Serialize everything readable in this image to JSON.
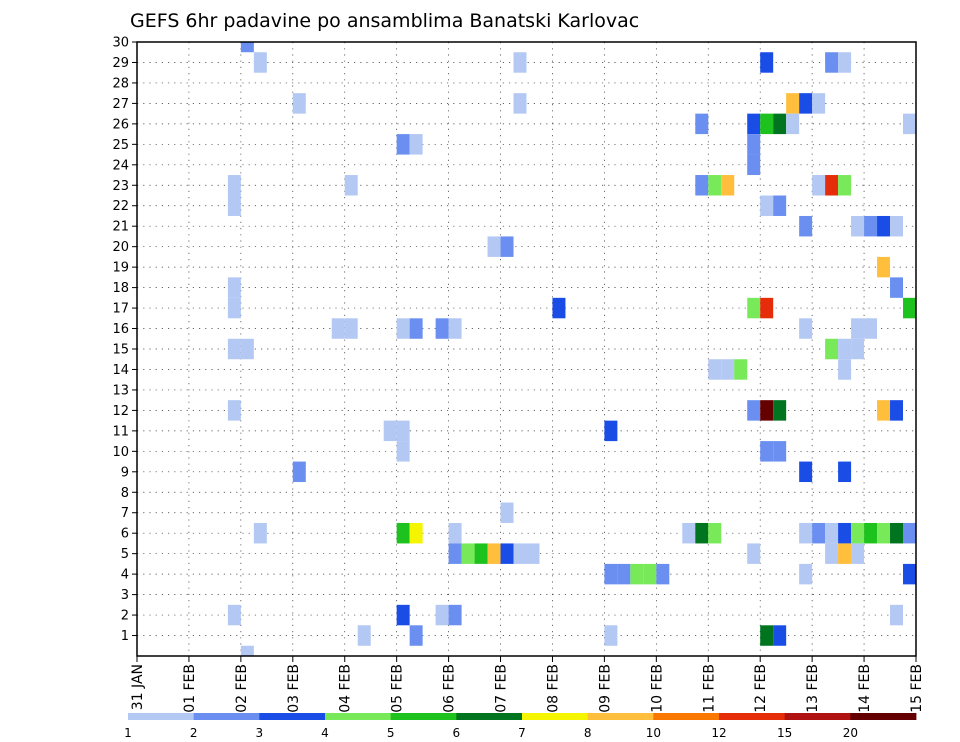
{
  "chart_data": {
    "type": "heatmap",
    "title": "GEFS 6hr padavine po ansamblima Banatski Karlovac",
    "x_tick_labels": [
      "31 JAN",
      "01 FEB",
      "02 FEB",
      "03 FEB",
      "04 FEB",
      "05 FEB",
      "06 FEB",
      "07 FEB",
      "08 FEB",
      "09 FEB",
      "10 FEB",
      "11 FEB",
      "12 FEB",
      "13 FEB",
      "14 FEB",
      "15 FEB"
    ],
    "y_tick_labels": [
      "1",
      "2",
      "3",
      "4",
      "5",
      "6",
      "7",
      "8",
      "9",
      "10",
      "11",
      "12",
      "13",
      "14",
      "15",
      "16",
      "17",
      "18",
      "19",
      "20",
      "21",
      "22",
      "23",
      "24",
      "25",
      "26",
      "27",
      "28",
      "29",
      "30"
    ],
    "xlim_days": [
      0,
      15
    ],
    "ylim_members": [
      0,
      30
    ],
    "time_step_hours": 6,
    "grid": "dotted",
    "colorbar": {
      "tick_labels": [
        "1",
        "2",
        "3",
        "4",
        "5",
        "6",
        "7",
        "8",
        "10",
        "12",
        "15",
        "20"
      ],
      "colors": [
        "#b4c8f4",
        "#6a8ff0",
        "#1a4de6",
        "#78ea5a",
        "#1ec21e",
        "#00741e",
        "#f5f500",
        "#ffbe3c",
        "#fa7800",
        "#e62d0a",
        "#b01212",
        "#640000"
      ]
    },
    "cells": [
      {
        "member": 30,
        "step": 8,
        "c": 1
      },
      {
        "member": 29,
        "step": 9,
        "c": 0
      },
      {
        "member": 29,
        "step": 29,
        "c": 0
      },
      {
        "member": 29,
        "step": 48,
        "c": 2
      },
      {
        "member": 29,
        "step": 53,
        "c": 1
      },
      {
        "member": 29,
        "step": 54,
        "c": 0
      },
      {
        "member": 27,
        "step": 12,
        "c": 0
      },
      {
        "member": 27,
        "step": 29,
        "c": 0
      },
      {
        "member": 27,
        "step": 50,
        "c": 7
      },
      {
        "member": 27,
        "step": 51,
        "c": 2
      },
      {
        "member": 27,
        "step": 52,
        "c": 0
      },
      {
        "member": 26,
        "step": 43,
        "c": 1
      },
      {
        "member": 26,
        "step": 47,
        "c": 2
      },
      {
        "member": 26,
        "step": 48,
        "c": 4
      },
      {
        "member": 26,
        "step": 49,
        "c": 5
      },
      {
        "member": 26,
        "step": 50,
        "c": 0
      },
      {
        "member": 26,
        "step": 59,
        "c": 0
      },
      {
        "member": 25,
        "step": 20,
        "c": 1
      },
      {
        "member": 25,
        "step": 21,
        "c": 0
      },
      {
        "member": 25,
        "step": 47,
        "c": 1
      },
      {
        "member": 24,
        "step": 47,
        "c": 1
      },
      {
        "member": 23,
        "step": 7,
        "c": 0
      },
      {
        "member": 23,
        "step": 16,
        "c": 0
      },
      {
        "member": 23,
        "step": 43,
        "c": 1
      },
      {
        "member": 23,
        "step": 44,
        "c": 3
      },
      {
        "member": 23,
        "step": 45,
        "c": 7
      },
      {
        "member": 23,
        "step": 52,
        "c": 0
      },
      {
        "member": 23,
        "step": 53,
        "c": 9
      },
      {
        "member": 23,
        "step": 54,
        "c": 3
      },
      {
        "member": 22,
        "step": 7,
        "c": 0
      },
      {
        "member": 22,
        "step": 48,
        "c": 0
      },
      {
        "member": 22,
        "step": 49,
        "c": 1
      },
      {
        "member": 21,
        "step": 51,
        "c": 1
      },
      {
        "member": 21,
        "step": 55,
        "c": 0
      },
      {
        "member": 21,
        "step": 56,
        "c": 1
      },
      {
        "member": 21,
        "step": 57,
        "c": 2
      },
      {
        "member": 21,
        "step": 58,
        "c": 0
      },
      {
        "member": 20,
        "step": 27,
        "c": 0
      },
      {
        "member": 20,
        "step": 28,
        "c": 1
      },
      {
        "member": 19,
        "step": 57,
        "c": 7
      },
      {
        "member": 18,
        "step": 7,
        "c": 0
      },
      {
        "member": 18,
        "step": 58,
        "c": 1
      },
      {
        "member": 17,
        "step": 7,
        "c": 0
      },
      {
        "member": 17,
        "step": 32,
        "c": 2
      },
      {
        "member": 17,
        "step": 47,
        "c": 3
      },
      {
        "member": 17,
        "step": 48,
        "c": 9
      },
      {
        "member": 17,
        "step": 59,
        "c": 4
      },
      {
        "member": 16,
        "step": 15,
        "c": 0
      },
      {
        "member": 16,
        "step": 16,
        "c": 0
      },
      {
        "member": 16,
        "step": 20,
        "c": 0
      },
      {
        "member": 16,
        "step": 21,
        "c": 1
      },
      {
        "member": 16,
        "step": 23,
        "c": 1
      },
      {
        "member": 16,
        "step": 24,
        "c": 0
      },
      {
        "member": 16,
        "step": 51,
        "c": 0
      },
      {
        "member": 16,
        "step": 55,
        "c": 0
      },
      {
        "member": 16,
        "step": 56,
        "c": 0
      },
      {
        "member": 15,
        "step": 7,
        "c": 0
      },
      {
        "member": 15,
        "step": 8,
        "c": 0
      },
      {
        "member": 15,
        "step": 53,
        "c": 3
      },
      {
        "member": 15,
        "step": 54,
        "c": 0
      },
      {
        "member": 15,
        "step": 55,
        "c": 0
      },
      {
        "member": 14,
        "step": 44,
        "c": 0
      },
      {
        "member": 14,
        "step": 45,
        "c": 0
      },
      {
        "member": 14,
        "step": 46,
        "c": 3
      },
      {
        "member": 14,
        "step": 54,
        "c": 0
      },
      {
        "member": 12,
        "step": 7,
        "c": 0
      },
      {
        "member": 12,
        "step": 47,
        "c": 1
      },
      {
        "member": 12,
        "step": 48,
        "c": 11
      },
      {
        "member": 12,
        "step": 49,
        "c": 5
      },
      {
        "member": 12,
        "step": 57,
        "c": 7
      },
      {
        "member": 12,
        "step": 58,
        "c": 2
      },
      {
        "member": 11,
        "step": 19,
        "c": 0
      },
      {
        "member": 11,
        "step": 20,
        "c": 0
      },
      {
        "member": 11,
        "step": 36,
        "c": 2
      },
      {
        "member": 10,
        "step": 20,
        "c": 0
      },
      {
        "member": 10,
        "step": 48,
        "c": 1
      },
      {
        "member": 10,
        "step": 49,
        "c": 1
      },
      {
        "member": 9,
        "step": 12,
        "c": 1
      },
      {
        "member": 9,
        "step": 51,
        "c": 2
      },
      {
        "member": 9,
        "step": 54,
        "c": 2
      },
      {
        "member": 7,
        "step": 28,
        "c": 0
      },
      {
        "member": 6,
        "step": 9,
        "c": 0
      },
      {
        "member": 6,
        "step": 20,
        "c": 4
      },
      {
        "member": 6,
        "step": 21,
        "c": 6
      },
      {
        "member": 6,
        "step": 24,
        "c": 0
      },
      {
        "member": 6,
        "step": 42,
        "c": 0
      },
      {
        "member": 6,
        "step": 43,
        "c": 5
      },
      {
        "member": 6,
        "step": 44,
        "c": 3
      },
      {
        "member": 6,
        "step": 51,
        "c": 0
      },
      {
        "member": 6,
        "step": 52,
        "c": 1
      },
      {
        "member": 6,
        "step": 53,
        "c": 0
      },
      {
        "member": 6,
        "step": 54,
        "c": 2
      },
      {
        "member": 6,
        "step": 55,
        "c": 3
      },
      {
        "member": 6,
        "step": 56,
        "c": 4
      },
      {
        "member": 6,
        "step": 57,
        "c": 3
      },
      {
        "member": 6,
        "step": 58,
        "c": 5
      },
      {
        "member": 6,
        "step": 59,
        "c": 1
      },
      {
        "member": 5,
        "step": 24,
        "c": 1
      },
      {
        "member": 5,
        "step": 25,
        "c": 3
      },
      {
        "member": 5,
        "step": 26,
        "c": 4
      },
      {
        "member": 5,
        "step": 27,
        "c": 7
      },
      {
        "member": 5,
        "step": 28,
        "c": 2
      },
      {
        "member": 5,
        "step": 29,
        "c": 0
      },
      {
        "member": 5,
        "step": 30,
        "c": 0
      },
      {
        "member": 5,
        "step": 47,
        "c": 0
      },
      {
        "member": 5,
        "step": 53,
        "c": 0
      },
      {
        "member": 5,
        "step": 54,
        "c": 7
      },
      {
        "member": 5,
        "step": 55,
        "c": 0
      },
      {
        "member": 4,
        "step": 36,
        "c": 1
      },
      {
        "member": 4,
        "step": 37,
        "c": 1
      },
      {
        "member": 4,
        "step": 38,
        "c": 3
      },
      {
        "member": 4,
        "step": 39,
        "c": 3
      },
      {
        "member": 4,
        "step": 40,
        "c": 1
      },
      {
        "member": 4,
        "step": 51,
        "c": 0
      },
      {
        "member": 4,
        "step": 59,
        "c": 2
      },
      {
        "member": 2,
        "step": 7,
        "c": 0
      },
      {
        "member": 2,
        "step": 20,
        "c": 2
      },
      {
        "member": 2,
        "step": 23,
        "c": 0
      },
      {
        "member": 2,
        "step": 24,
        "c": 1
      },
      {
        "member": 2,
        "step": 58,
        "c": 0
      },
      {
        "member": 1,
        "step": 17,
        "c": 0
      },
      {
        "member": 1,
        "step": 21,
        "c": 1
      },
      {
        "member": 1,
        "step": 36,
        "c": 0
      },
      {
        "member": 1,
        "step": 48,
        "c": 5
      },
      {
        "member": 1,
        "step": 49,
        "c": 2
      },
      {
        "member": 0,
        "step": 8,
        "c": 0
      }
    ]
  }
}
